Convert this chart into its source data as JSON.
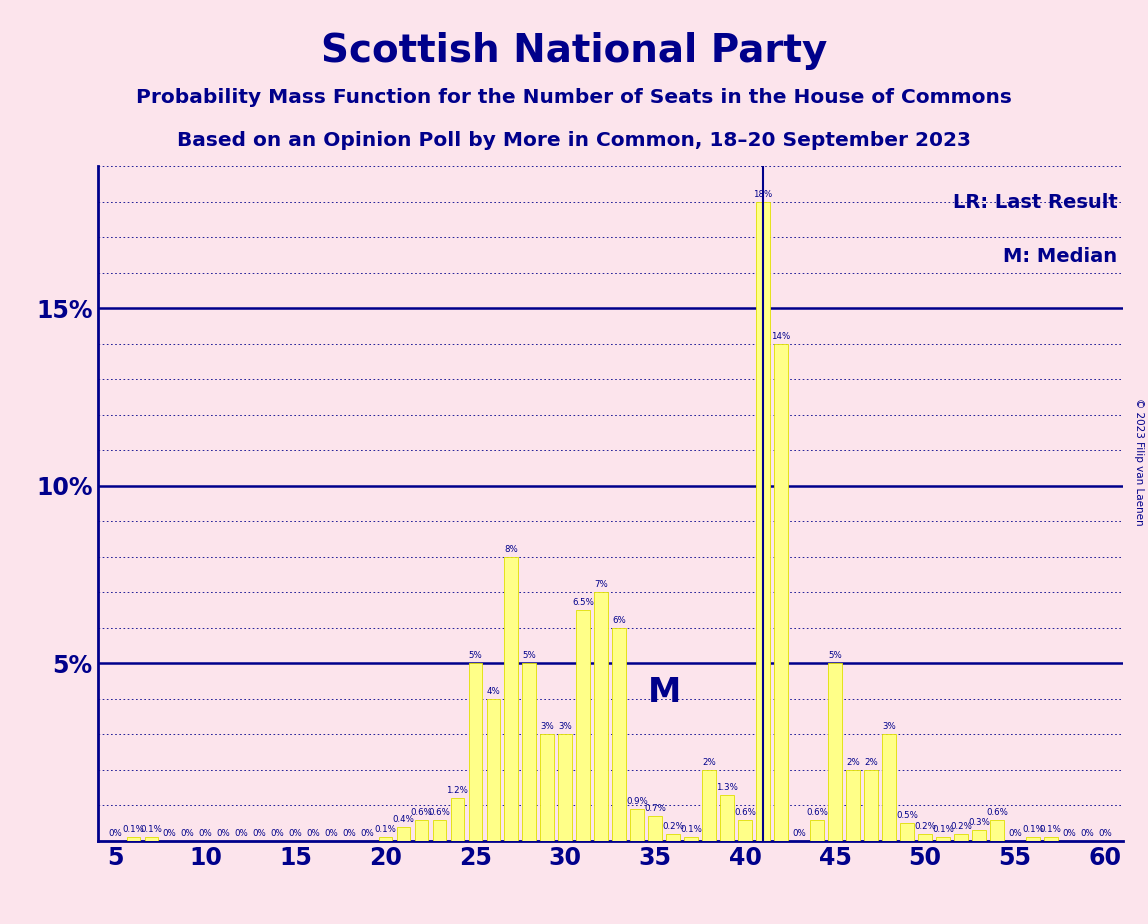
{
  "title": "Scottish National Party",
  "subtitle1": "Probability Mass Function for the Number of Seats in the House of Commons",
  "subtitle2": "Based on an Opinion Poll by More in Common, 18–20 September 2023",
  "copyright": "© 2023 Filip van Laenen",
  "lr_label": "LR: Last Result",
  "m_label": "M: Median",
  "background_color": "#fce4ec",
  "bar_color": "#ffff88",
  "bar_edge_color": "#e0e000",
  "axis_color": "#00008B",
  "title_color": "#00008B",
  "median_seat": 34,
  "last_result_seat": 41,
  "xmin": 4,
  "xmax": 61,
  "ymax": 0.19,
  "yticks": [
    0.0,
    0.05,
    0.1,
    0.15
  ],
  "ytick_labels": [
    "",
    "5%",
    "10%",
    "15%"
  ],
  "seats": [
    5,
    6,
    7,
    8,
    9,
    10,
    11,
    12,
    13,
    14,
    15,
    16,
    17,
    18,
    19,
    20,
    21,
    22,
    23,
    24,
    25,
    26,
    27,
    28,
    29,
    30,
    31,
    32,
    33,
    34,
    35,
    36,
    37,
    38,
    39,
    40,
    41,
    42,
    43,
    44,
    45,
    46,
    47,
    48,
    49,
    50,
    51,
    52,
    53,
    54,
    55,
    56,
    57,
    58,
    59,
    60
  ],
  "probs": [
    0.0,
    0.001,
    0.001,
    0.0,
    0.0,
    0.0,
    0.0,
    0.0,
    0.0,
    0.0,
    0.0,
    0.0,
    0.0,
    0.0,
    0.0,
    0.001,
    0.004,
    0.006,
    0.006,
    0.012,
    0.05,
    0.04,
    0.08,
    0.05,
    0.03,
    0.03,
    0.065,
    0.07,
    0.06,
    0.009,
    0.007,
    0.002,
    0.001,
    0.02,
    0.013,
    0.006,
    0.18,
    0.14,
    0.0,
    0.006,
    0.05,
    0.02,
    0.02,
    0.03,
    0.005,
    0.002,
    0.001,
    0.002,
    0.003,
    0.006,
    0.0,
    0.001,
    0.001,
    0.0,
    0.0,
    0.0
  ],
  "bar_labels": [
    "0%",
    "0.1%",
    "0.1%",
    "0%",
    "0%",
    "0%",
    "0%",
    "0%",
    "0%",
    "0%",
    "0%",
    "0%",
    "0%",
    "0%",
    "0%",
    "0.1%",
    "0.4%",
    "0.6%",
    "0.6%",
    "1.2%",
    "5%",
    "4%",
    "8%",
    "5%",
    "3%",
    "3%",
    "6.5%",
    "7%",
    "6%",
    "0.9%",
    "0.7%",
    "0.2%",
    "0.1%",
    "2%",
    "1.3%",
    "0.6%",
    "18%",
    "14%",
    "0%",
    "0.6%",
    "5%",
    "2%",
    "2%",
    "3%",
    "0.5%",
    "0.2%",
    "0.1%",
    "0.2%",
    "0.3%",
    "0.6%",
    "0%",
    "0.1%",
    "0.1%",
    "0%",
    "0%",
    "0%"
  ]
}
